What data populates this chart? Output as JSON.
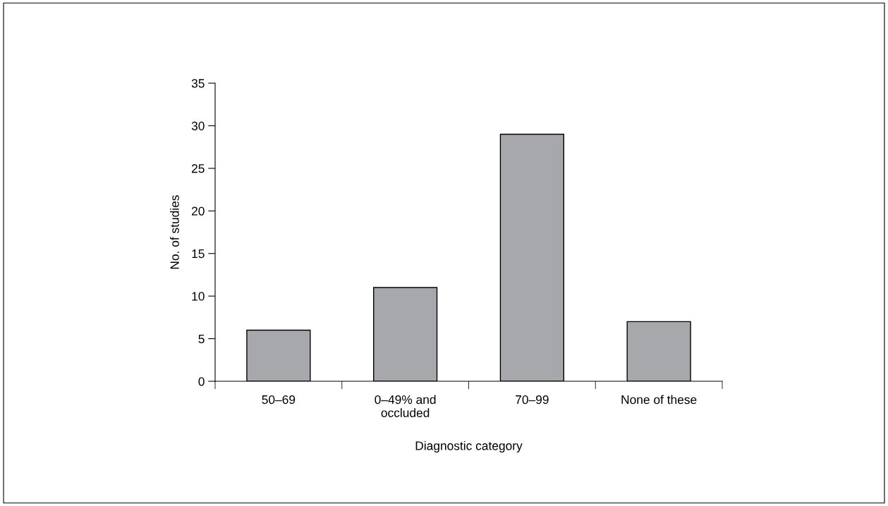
{
  "chart_data": {
    "type": "bar",
    "xlabel": "Diagnostic category",
    "ylabel": "No. of studies",
    "categories": [
      "50–69",
      "0–49% and\noccluded",
      "70–99",
      "None of these"
    ],
    "values": [
      6,
      11,
      29,
      7
    ],
    "color": "#a7a8ab",
    "ylim": [
      0,
      35
    ],
    "yticks": [
      0,
      5,
      10,
      15,
      20,
      25,
      30,
      35
    ],
    "grid": false,
    "legend": false
  }
}
